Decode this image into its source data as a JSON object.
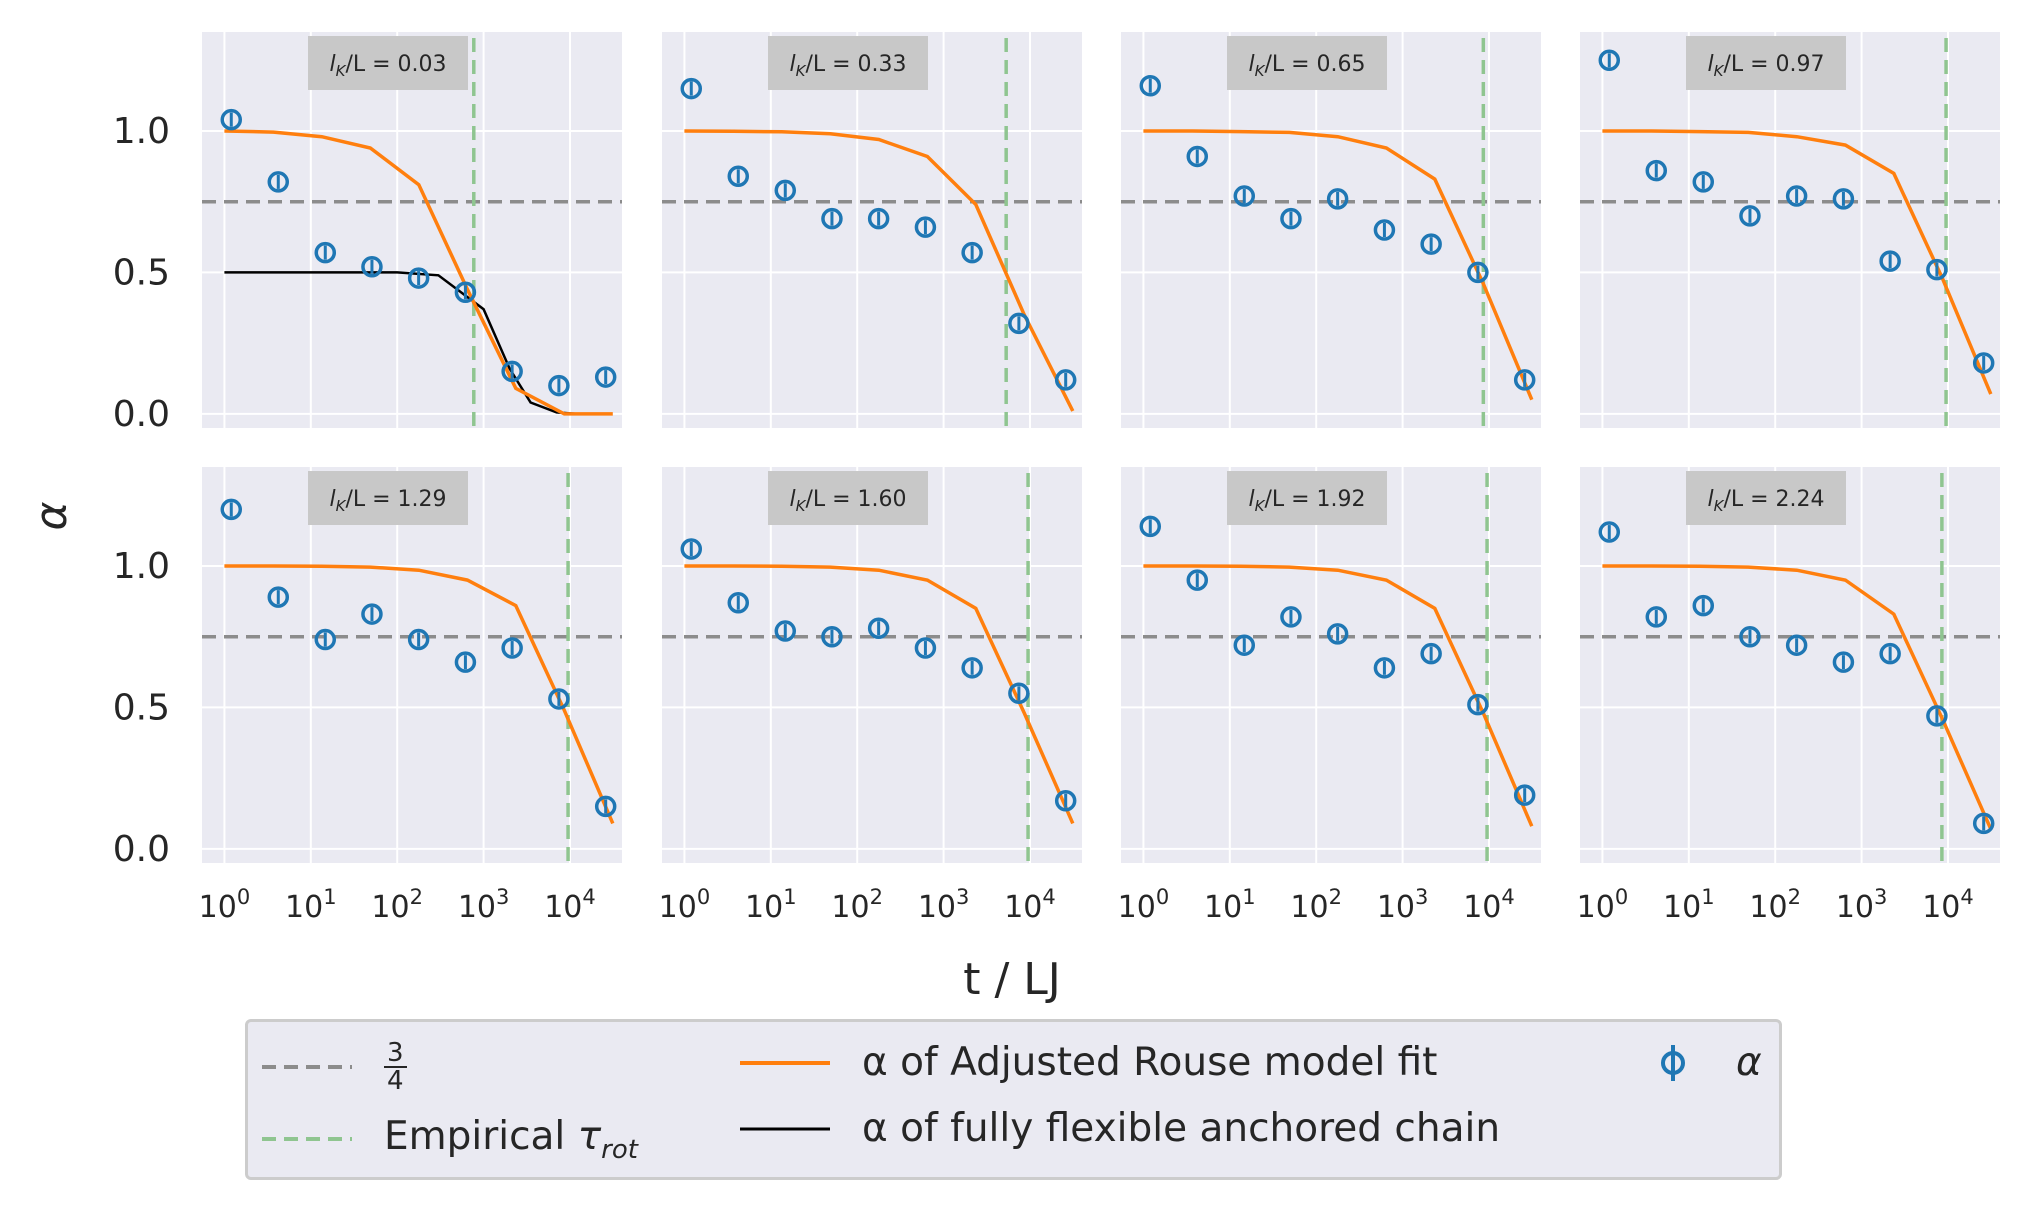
{
  "figure": {
    "ylabel": "α",
    "xlabel": "t / LJ"
  },
  "colors": {
    "panel_bg": "#eaeaf2",
    "grid": "#ffffff",
    "three_quarter": "#8c8c8c",
    "empirical": "#8fc590",
    "rouse": "#ff7f0e",
    "flexible": "#000000",
    "alpha_marker": "#1f77b4",
    "badge": "#c8c8c8"
  },
  "legend": {
    "three_quarter_num": "3",
    "three_quarter_den": "4",
    "empirical_label": "Empirical ",
    "empirical_sym": "τ",
    "empirical_sub": "rot",
    "rouse_label": "α of Adjusted Rouse model fit",
    "flexible_label": "α of fully flexible anchored chain",
    "alpha_label": "α"
  },
  "chart_data": {
    "type": "line",
    "layout": "2 rows × 4 columns, shared axes",
    "x_scale": "log",
    "xlim": [
      0.55,
      40000
    ],
    "ylim": [
      -0.05,
      1.35
    ],
    "x_ticks": [
      1,
      10,
      100,
      1000,
      10000
    ],
    "x_tick_labels": [
      "10^0",
      "10^1",
      "10^2",
      "10^3",
      "10^4"
    ],
    "y_ticks": [
      0.0,
      0.5,
      1.0
    ],
    "y_tick_labels": [
      "0.0",
      "0.5",
      "1.0"
    ],
    "three_quarter_line": 0.75,
    "grid": true,
    "legend_position": "below",
    "marker_x": [
      1.2,
      4.2,
      14.7,
      51,
      177,
      616,
      2140,
      7440,
      25900
    ],
    "rouse_x": [
      1,
      3.7,
      13.4,
      48.8,
      178,
      650,
      2360,
      8600,
      31300
    ],
    "panels": [
      {
        "label_prefix": "l",
        "label_sub": "K",
        "label_suffix": "/L = 0.03",
        "tau_rot": 770,
        "alpha": [
          1.04,
          0.82,
          0.57,
          0.52,
          0.48,
          0.43,
          0.15,
          0.1,
          0.13
        ],
        "rouse_fit": [
          1.0,
          0.996,
          0.98,
          0.94,
          0.81,
          0.44,
          0.09,
          0.0,
          0.0
        ],
        "flexible_x": [
          1,
          10,
          100,
          300,
          1000,
          2000,
          3500,
          7000,
          12000,
          28000
        ],
        "flexible": [
          0.5,
          0.5,
          0.5,
          0.49,
          0.37,
          0.16,
          0.04,
          0.005,
          0.0,
          0.0
        ]
      },
      {
        "label_prefix": "l",
        "label_sub": "K",
        "label_suffix": "/L = 0.33",
        "tau_rot": 5300,
        "alpha": [
          1.15,
          0.84,
          0.79,
          0.69,
          0.69,
          0.66,
          0.57,
          0.32,
          0.12
        ],
        "rouse_fit": [
          1.0,
          0.999,
          0.997,
          0.99,
          0.97,
          0.91,
          0.74,
          0.35,
          0.01
        ]
      },
      {
        "label_prefix": "l",
        "label_sub": "K",
        "label_suffix": "/L = 0.65",
        "tau_rot": 8600,
        "alpha": [
          1.16,
          0.91,
          0.77,
          0.69,
          0.76,
          0.65,
          0.6,
          0.5,
          0.12
        ],
        "rouse_fit": [
          1.0,
          1.0,
          0.998,
          0.995,
          0.98,
          0.94,
          0.83,
          0.46,
          0.05
        ]
      },
      {
        "label_prefix": "l",
        "label_sub": "K",
        "label_suffix": "/L = 0.97",
        "tau_rot": 9500,
        "alpha": [
          1.25,
          0.86,
          0.82,
          0.7,
          0.77,
          0.76,
          0.54,
          0.51,
          0.18
        ],
        "rouse_fit": [
          1.0,
          1.0,
          0.998,
          0.995,
          0.98,
          0.95,
          0.85,
          0.48,
          0.07
        ]
      },
      {
        "label_prefix": "l",
        "label_sub": "K",
        "label_suffix": "/L = 1.29",
        "tau_rot": 9500,
        "alpha": [
          1.2,
          0.89,
          0.74,
          0.83,
          0.74,
          0.66,
          0.71,
          0.53,
          0.15
        ],
        "rouse_fit": [
          1.0,
          1.0,
          0.999,
          0.996,
          0.985,
          0.95,
          0.86,
          0.49,
          0.09
        ]
      },
      {
        "label_prefix": "l",
        "label_sub": "K",
        "label_suffix": "/L = 1.60",
        "tau_rot": 9500,
        "alpha": [
          1.06,
          0.87,
          0.77,
          0.75,
          0.78,
          0.71,
          0.64,
          0.55,
          0.17
        ],
        "rouse_fit": [
          1.0,
          1.0,
          0.999,
          0.996,
          0.985,
          0.95,
          0.85,
          0.48,
          0.09
        ]
      },
      {
        "label_prefix": "l",
        "label_sub": "K",
        "label_suffix": "/L = 1.92",
        "tau_rot": 9500,
        "alpha": [
          1.14,
          0.95,
          0.72,
          0.82,
          0.76,
          0.64,
          0.69,
          0.51,
          0.19
        ],
        "rouse_fit": [
          1.0,
          1.0,
          0.999,
          0.996,
          0.985,
          0.95,
          0.85,
          0.48,
          0.08
        ]
      },
      {
        "label_prefix": "l",
        "label_sub": "K",
        "label_suffix": "/L = 2.24",
        "tau_rot": 8500,
        "alpha": [
          1.12,
          0.82,
          0.86,
          0.75,
          0.72,
          0.66,
          0.69,
          0.47,
          0.09
        ],
        "rouse_fit": [
          1.0,
          1.0,
          0.999,
          0.996,
          0.985,
          0.95,
          0.83,
          0.46,
          0.07
        ]
      }
    ]
  }
}
